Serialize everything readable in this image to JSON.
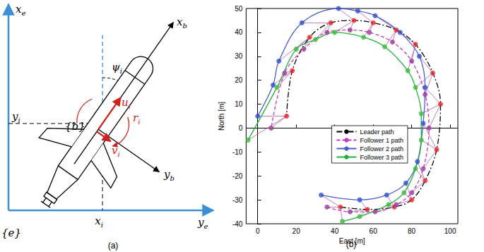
{
  "panel_a": {
    "caption": "(a)",
    "labels": {
      "axis_xe": {
        "text": "x",
        "sub": "e"
      },
      "axis_ye": {
        "text": "y",
        "sub": "e"
      },
      "frame_e": {
        "text": "{e}"
      },
      "xi": {
        "text": "x",
        "sub": "i"
      },
      "yi": {
        "text": "y",
        "sub": "i"
      },
      "xb": {
        "text": "x",
        "sub": "b"
      },
      "yb": {
        "text": "y",
        "sub": "b"
      },
      "psi": {
        "text": "ψ",
        "sub": "i"
      },
      "u": {
        "text": "u",
        "sub": "i"
      },
      "v": {
        "text": "v",
        "sub": "i"
      },
      "r": {
        "text": "r",
        "sub": "i"
      },
      "frame_b": {
        "text": "{b}"
      }
    }
  },
  "chart_data": {
    "type": "line",
    "caption": "(b)",
    "x_label": "East [m]",
    "y_label": "North [m]",
    "xlim": [
      -6,
      104
    ],
    "xticks": [
      0,
      20,
      40,
      60,
      80,
      100
    ],
    "ylim": [
      -40,
      50
    ],
    "yticks": [
      -40,
      -30,
      -20,
      -10,
      0,
      10,
      20,
      30,
      40,
      50
    ],
    "grid": false,
    "legend": "center",
    "series": [
      {
        "name": "Leader path",
        "type": "line",
        "color": "#000000",
        "line_style": "dashdot",
        "values": [
          [
            43,
            -33
          ],
          [
            57,
            -34
          ],
          [
            71,
            -33
          ],
          [
            80,
            -30
          ],
          [
            87,
            -22
          ],
          [
            93,
            -9
          ],
          [
            95,
            10
          ],
          [
            91,
            23
          ],
          [
            82,
            35
          ],
          [
            72,
            41
          ],
          [
            60,
            44
          ],
          [
            50,
            45
          ],
          [
            38,
            44
          ],
          [
            27,
            38
          ],
          [
            18,
            24
          ],
          [
            15,
            5
          ]
        ]
      },
      {
        "name": "Follower 1 path",
        "type": "line",
        "color": "#c03cc0",
        "line_style": "dashed",
        "values": [
          [
            36,
            -33
          ],
          [
            48,
            -35
          ],
          [
            61,
            -35
          ],
          [
            72,
            -32
          ],
          [
            80,
            -27
          ],
          [
            86,
            -17
          ],
          [
            89,
            0
          ],
          [
            87,
            14
          ],
          [
            80,
            28
          ],
          [
            70,
            36
          ],
          [
            58,
            40
          ],
          [
            48,
            41
          ],
          [
            36,
            40
          ],
          [
            24,
            33
          ],
          [
            14,
            23
          ],
          [
            7,
            0
          ]
        ]
      },
      {
        "name": "Follower 2 path",
        "type": "line",
        "color": "#4a5fd0",
        "line_style": "solid",
        "values": [
          [
            33,
            -28
          ],
          [
            53,
            -30
          ],
          [
            67,
            -28
          ],
          [
            77,
            -23
          ],
          [
            83,
            -14
          ],
          [
            86,
            2
          ],
          [
            87,
            17
          ],
          [
            84,
            30
          ],
          [
            74,
            40
          ],
          [
            61,
            47
          ],
          [
            52,
            49
          ],
          [
            42,
            50
          ],
          [
            23,
            44
          ],
          [
            11,
            28
          ],
          [
            8,
            18
          ],
          [
            0,
            5
          ]
        ]
      },
      {
        "name": "Follower 3 path",
        "type": "line",
        "color": "#22b03c",
        "line_style": "solid",
        "values": [
          [
            44,
            -39
          ],
          [
            53,
            -37
          ],
          [
            68,
            -32
          ],
          [
            76,
            -27
          ],
          [
            82,
            -17
          ],
          [
            85,
            -5
          ],
          [
            85,
            6
          ],
          [
            82,
            17
          ],
          [
            78,
            24
          ],
          [
            66,
            34
          ],
          [
            55,
            38
          ],
          [
            40,
            40
          ],
          [
            30,
            37
          ],
          [
            20,
            33
          ],
          [
            10,
            17
          ],
          [
            -5,
            -5
          ]
        ]
      },
      {
        "type": "scatter",
        "marker": "circle",
        "color": "#e8262a",
        "values": [
          [
            43,
            -33
          ],
          [
            57,
            -34
          ],
          [
            71,
            -33
          ],
          [
            80,
            -30
          ],
          [
            87,
            -22
          ],
          [
            93,
            -9
          ],
          [
            95,
            10
          ],
          [
            91,
            23
          ],
          [
            82,
            35
          ],
          [
            72,
            41
          ],
          [
            60,
            44
          ],
          [
            50,
            45
          ],
          [
            38,
            44
          ],
          [
            27,
            38
          ],
          [
            18,
            24
          ],
          [
            15,
            5
          ]
        ]
      },
      {
        "type": "scatter",
        "marker": "circle",
        "color": "#9a3c9a",
        "values": [
          [
            36,
            -33
          ],
          [
            48,
            -35
          ],
          [
            61,
            -35
          ],
          [
            72,
            -32
          ],
          [
            80,
            -27
          ],
          [
            86,
            -17
          ],
          [
            89,
            0
          ],
          [
            87,
            14
          ],
          [
            80,
            28
          ],
          [
            70,
            36
          ],
          [
            58,
            40
          ],
          [
            48,
            41
          ],
          [
            36,
            40
          ],
          [
            24,
            33
          ],
          [
            14,
            23
          ],
          [
            7,
            0
          ]
        ]
      },
      {
        "type": "scatter",
        "marker": "circle",
        "color": "#2f4fc8",
        "values": [
          [
            33,
            -28
          ],
          [
            53,
            -30
          ],
          [
            67,
            -28
          ],
          [
            77,
            -23
          ],
          [
            83,
            -14
          ],
          [
            86,
            2
          ],
          [
            87,
            17
          ],
          [
            84,
            30
          ],
          [
            74,
            40
          ],
          [
            61,
            47
          ],
          [
            52,
            49
          ],
          [
            42,
            50
          ],
          [
            23,
            44
          ],
          [
            11,
            28
          ],
          [
            8,
            18
          ],
          [
            0,
            5
          ]
        ]
      },
      {
        "type": "scatter",
        "marker": "circle",
        "color": "#3cba3c",
        "values": [
          [
            44,
            -39
          ],
          [
            53,
            -37
          ],
          [
            68,
            -32
          ],
          [
            76,
            -27
          ],
          [
            82,
            -17
          ],
          [
            85,
            -5
          ],
          [
            85,
            6
          ],
          [
            82,
            17
          ],
          [
            78,
            24
          ],
          [
            66,
            34
          ],
          [
            55,
            38
          ],
          [
            40,
            40
          ],
          [
            30,
            37
          ],
          [
            20,
            33
          ],
          [
            10,
            17
          ],
          [
            -5,
            -5
          ]
        ]
      }
    ]
  }
}
